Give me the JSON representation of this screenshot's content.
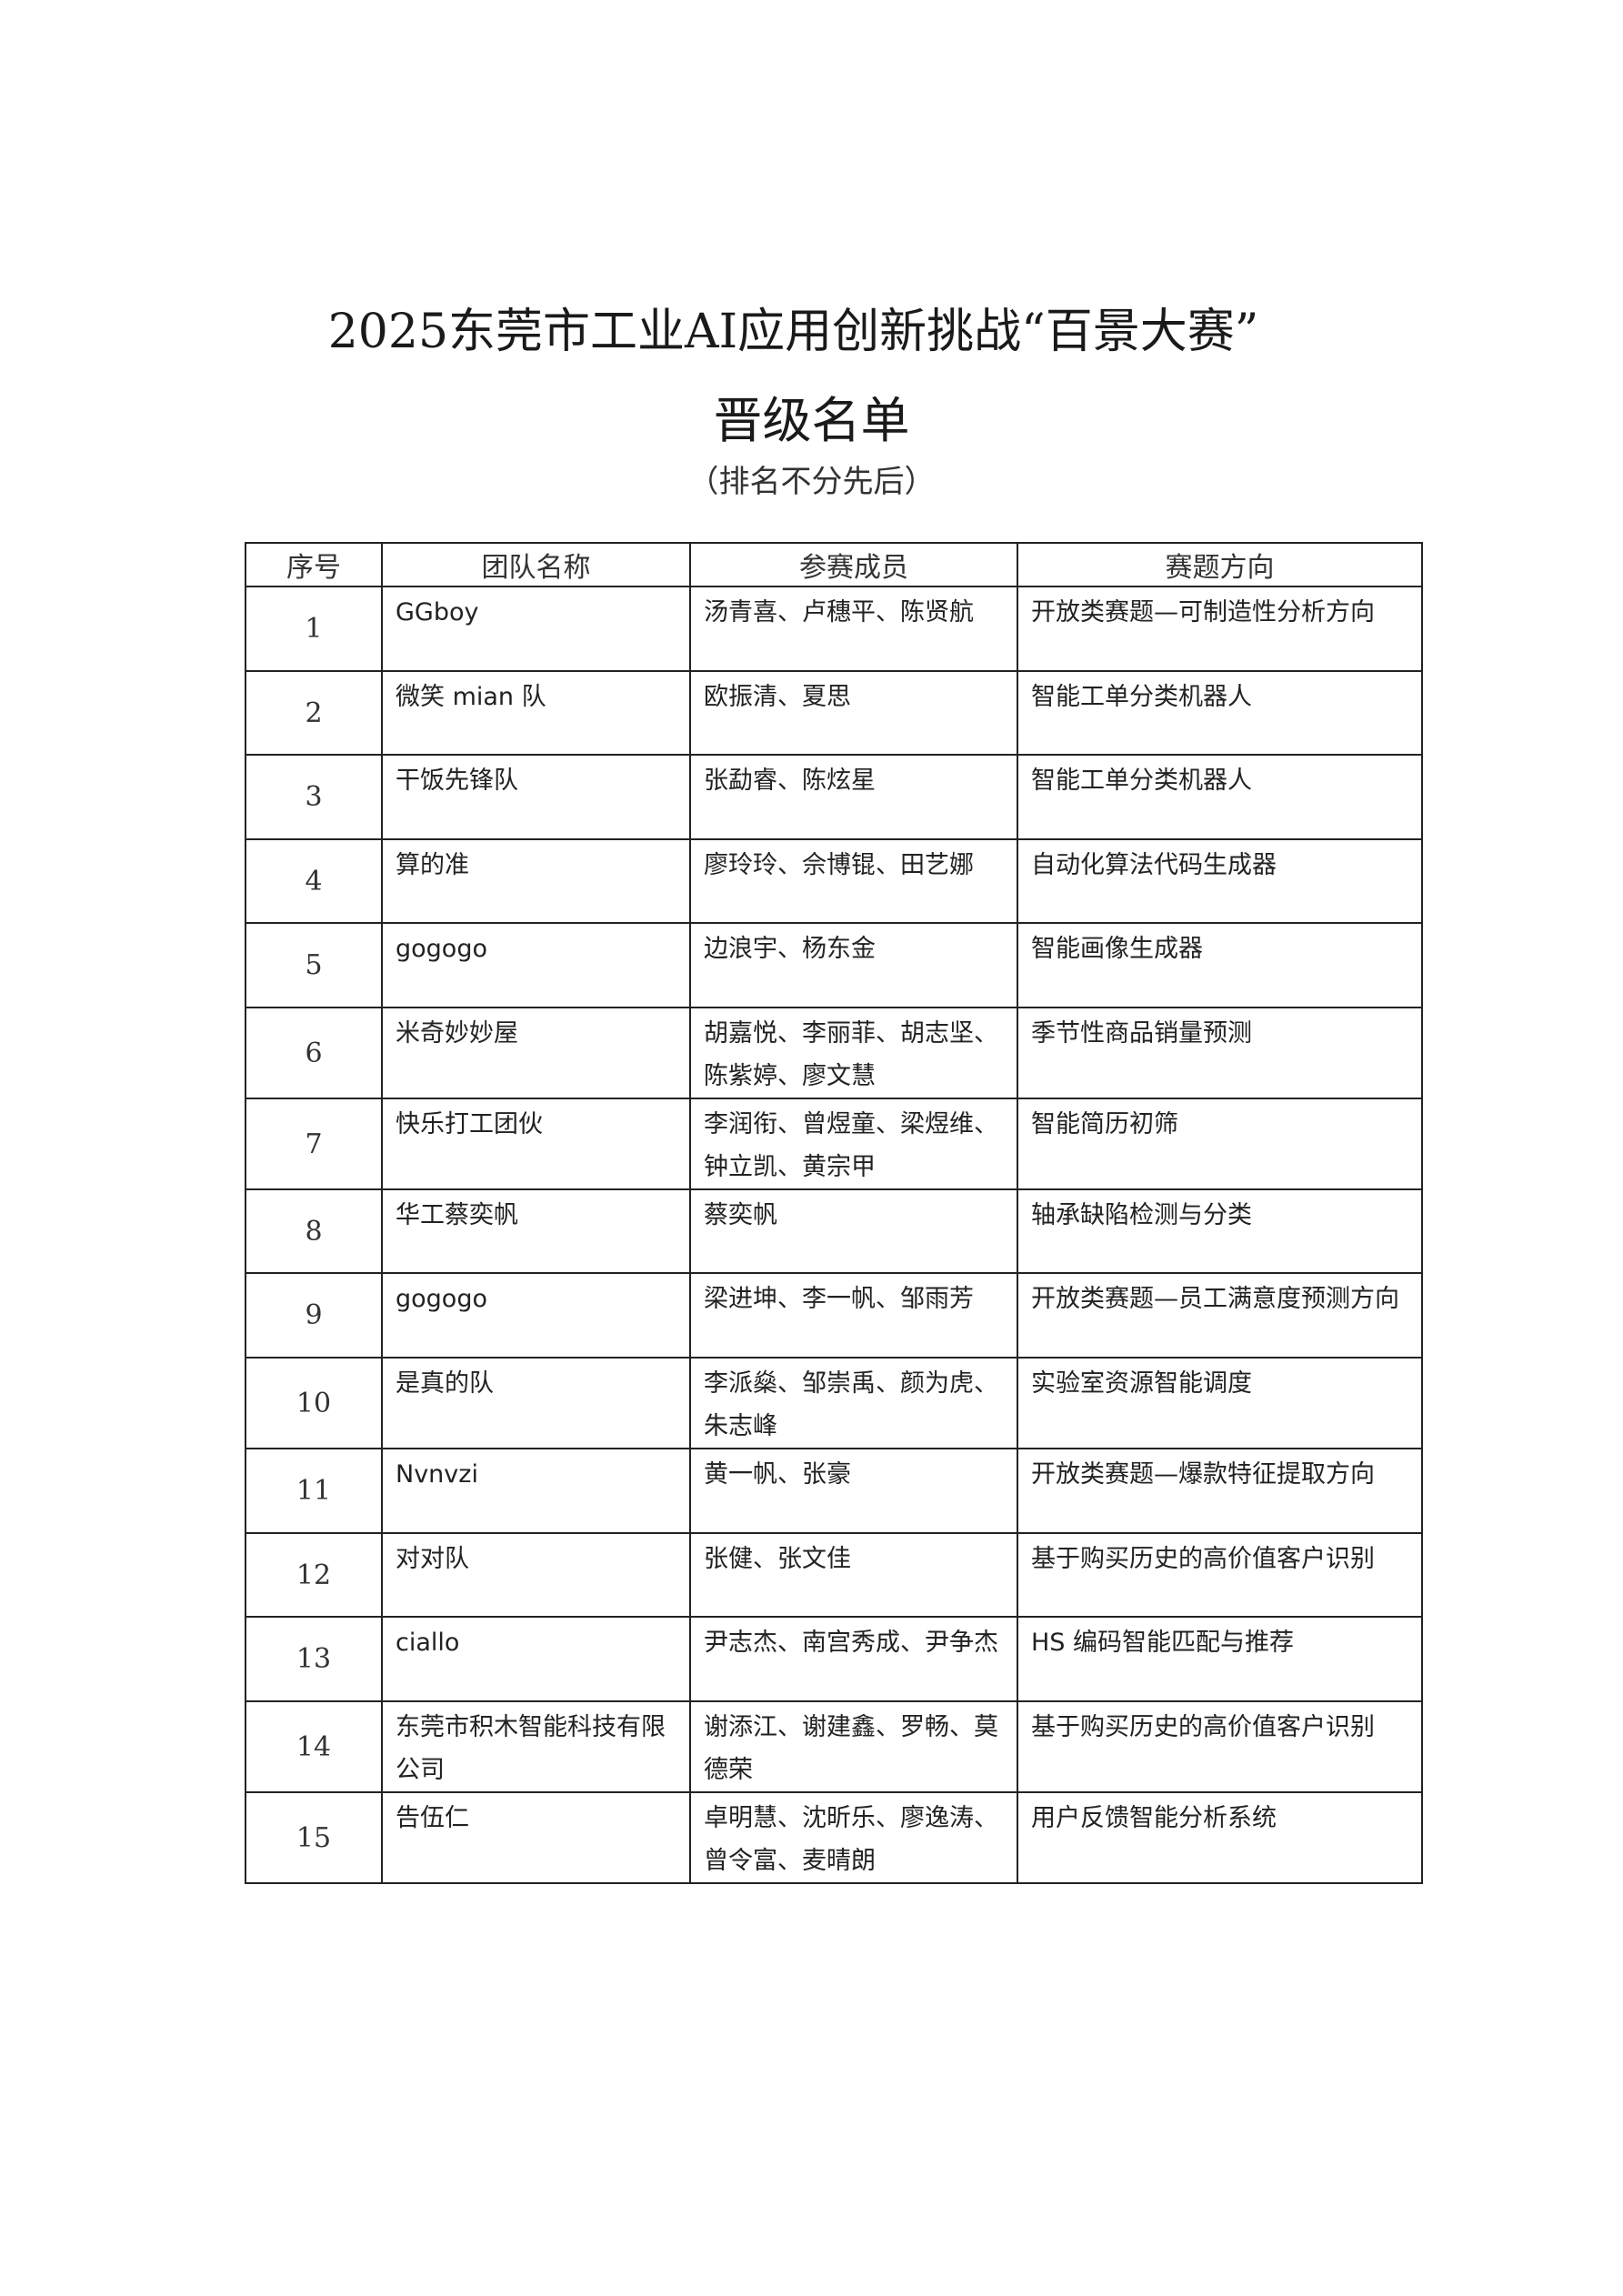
{
  "title": "2025东莞市工业AI应用创新挑战“百景大赛”",
  "subtitle": "晋级名单",
  "note": "（排名不分先后）",
  "table": {
    "headers": [
      "序号",
      "团队名称",
      "参赛成员",
      "赛题方向"
    ],
    "rows": [
      {
        "no": "1",
        "team": "GGboy",
        "members": "汤青喜、卢穗平、陈贤航",
        "topic": "开放类赛题—可制造性分析方向"
      },
      {
        "no": "2",
        "team": "微笑 mian 队",
        "members": "欧振清、夏思",
        "topic": "智能工单分类机器人"
      },
      {
        "no": "3",
        "team": "干饭先锋队",
        "members": "张勐睿、陈炫星",
        "topic": "智能工单分类机器人"
      },
      {
        "no": "4",
        "team": "算的准",
        "members": "廖玲玲、佘博锟、田艺娜",
        "topic": "自动化算法代码生成器"
      },
      {
        "no": "5",
        "team": "gogogo",
        "members": "边浪宇、杨东金",
        "topic": "智能画像生成器"
      },
      {
        "no": "6",
        "team": "米奇妙妙屋",
        "members": "胡嘉悦、李丽菲、胡志坚、陈紫婷、廖文慧",
        "topic": "季节性商品销量预测"
      },
      {
        "no": "7",
        "team": "快乐打工团伙",
        "members": "李润衔、曾煜童、梁煜维、钟立凯、黄宗甲",
        "topic": "智能简历初筛"
      },
      {
        "no": "8",
        "team": "华工蔡奕帆",
        "members": "蔡奕帆",
        "topic": "轴承缺陷检测与分类"
      },
      {
        "no": "9",
        "team": "gogogo",
        "members": "梁进坤、李一帆、邹雨芳",
        "topic": "开放类赛题—员工满意度预测方向"
      },
      {
        "no": "10",
        "team": "是真的队",
        "members": "李派燊、邹崇禹、颜为虎、朱志峰",
        "topic": "实验室资源智能调度"
      },
      {
        "no": "11",
        "team": "Nvnvzi",
        "members": "黄一帆、张豪",
        "topic": "开放类赛题—爆款特征提取方向"
      },
      {
        "no": "12",
        "team": "对对队",
        "members": "张健、张文佳",
        "topic": "基于购买历史的高价值客户识别"
      },
      {
        "no": "13",
        "team": "ciallo",
        "members": "尹志杰、南宫秀成、尹争杰",
        "topic": "HS 编码智能匹配与推荐"
      },
      {
        "no": "14",
        "team": "东莞市积木智能科技有限公司",
        "members": "谢添江、谢建鑫、罗畅、莫德荣",
        "topic": "基于购买历史的高价值客户识别"
      },
      {
        "no": "15",
        "team": "告伍仁",
        "members": "卓明慧、沈昕乐、廖逸涛、曾令富、麦晴朗",
        "topic": "用户反馈智能分析系统"
      }
    ]
  }
}
